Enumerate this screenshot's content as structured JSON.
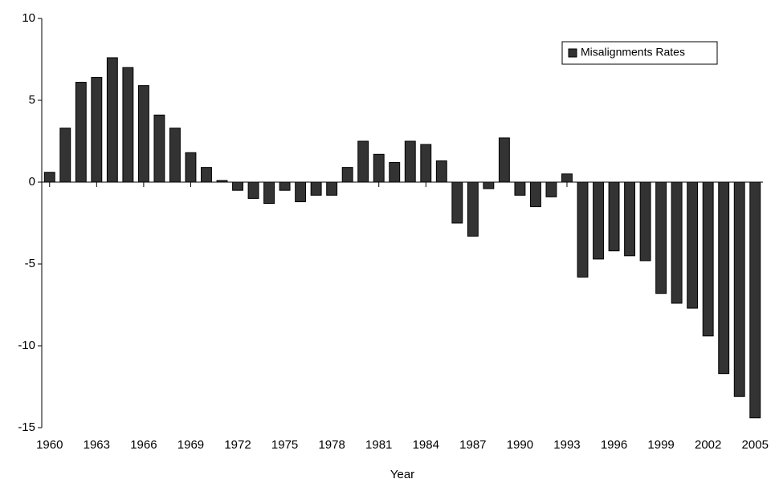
{
  "chart_data": {
    "type": "bar",
    "x_label": "Year",
    "x": [
      1960,
      1961,
      1962,
      1963,
      1964,
      1965,
      1966,
      1967,
      1968,
      1969,
      1970,
      1971,
      1972,
      1973,
      1974,
      1975,
      1976,
      1977,
      1978,
      1979,
      1980,
      1981,
      1982,
      1983,
      1984,
      1985,
      1986,
      1987,
      1988,
      1989,
      1990,
      1991,
      1992,
      1993,
      1994,
      1995,
      1996,
      1997,
      1998,
      1999,
      2000,
      2001,
      2002,
      2003,
      2004,
      2005
    ],
    "series": [
      {
        "name": "Misalignments Rates",
        "color": "#333333",
        "values": [
          0.6,
          3.3,
          6.1,
          6.4,
          7.6,
          7.0,
          5.9,
          4.1,
          3.3,
          1.8,
          0.9,
          0.1,
          -0.5,
          -1.0,
          -1.3,
          -0.5,
          -1.2,
          -0.8,
          -0.8,
          0.9,
          2.5,
          1.7,
          1.2,
          2.5,
          2.3,
          1.3,
          -2.5,
          -3.3,
          -0.4,
          2.7,
          -0.8,
          -1.5,
          -0.9,
          0.5,
          -5.8,
          -4.7,
          -4.2,
          -4.5,
          -4.8,
          -6.8,
          -7.4,
          -7.7,
          -9.4,
          -11.7,
          -13.1,
          -14.4
        ]
      }
    ],
    "xlim": [
      1959.5,
      2005.5
    ],
    "xticks": [
      1960,
      1963,
      1966,
      1969,
      1972,
      1975,
      1978,
      1981,
      1984,
      1987,
      1990,
      1993,
      1996,
      1999,
      2002,
      2005
    ],
    "ylim": [
      -15,
      10
    ],
    "yticks": [
      -15,
      -10,
      -5,
      0,
      5,
      10
    ],
    "legend": "top-right"
  }
}
